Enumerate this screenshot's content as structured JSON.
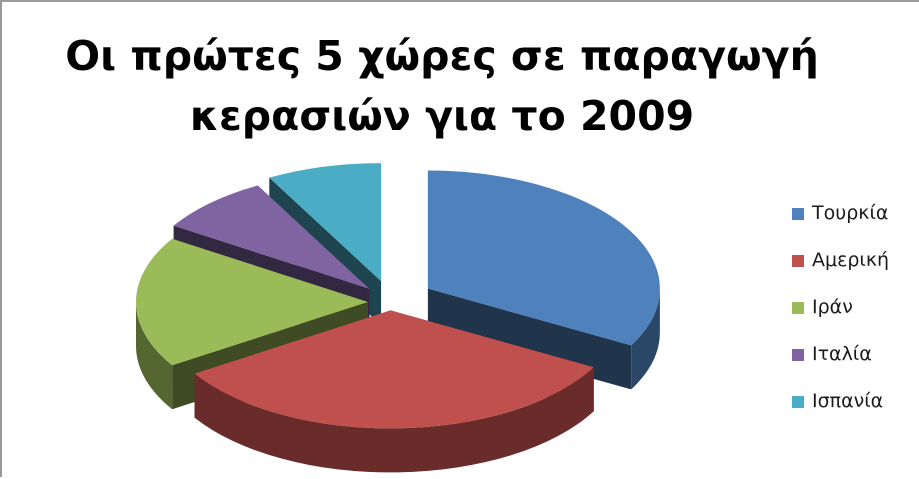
{
  "chart_data": {
    "type": "pie",
    "title_lines": [
      "Οι πρώτες 5 χώρες σε παραγωγή",
      "κερασιών για το 2009"
    ],
    "categories": [
      "Τουρκία",
      "Αμερική",
      "Ιράν",
      "Ιταλία",
      "Ισπανία"
    ],
    "values": [
      33,
      33,
      18,
      8,
      8
    ],
    "colors": [
      "#4F81BD",
      "#C0504D",
      "#9BBB59",
      "#8064A2",
      "#4BACC6"
    ],
    "style": "3d-exploded",
    "legend_position": "right"
  }
}
